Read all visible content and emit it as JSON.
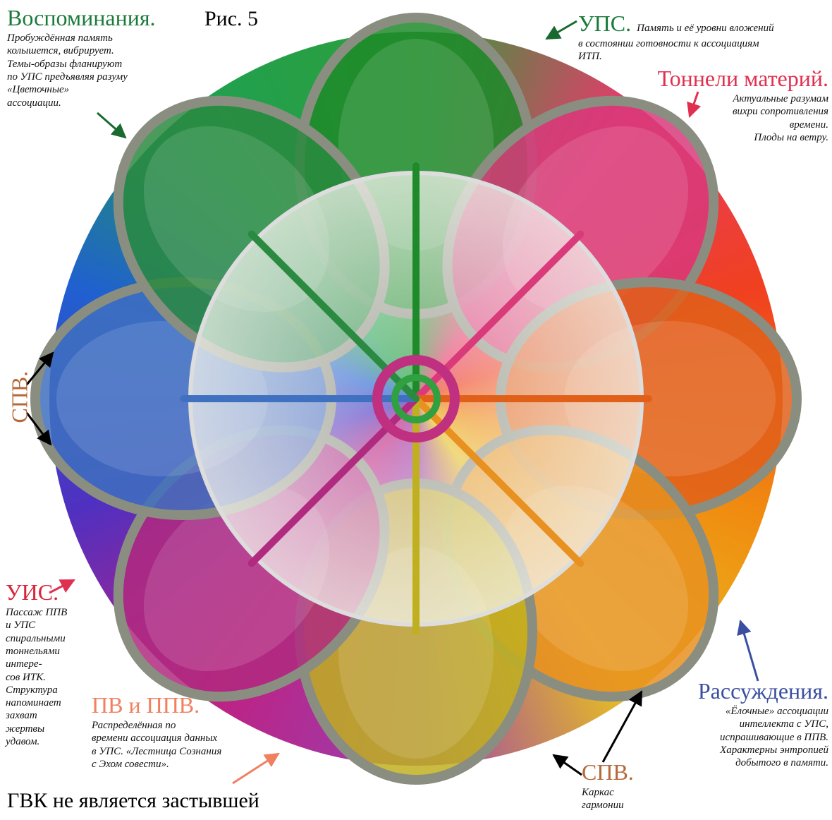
{
  "figure_label": "Рис. 5",
  "annotations": [
    {
      "title": "Воспоминания.",
      "lines": [
        "Пробуждённая память",
        "колышется, вибрирует.",
        "Темы-образы фланируют",
        "по УПС предъявляя разуму",
        "«Цветочные»",
        "ассоциации."
      ]
    },
    {
      "title": "УПС.",
      "lines": [
        "Память и её уровни вложений",
        "в состоянии готовности к ассоциациям",
        "ИТП."
      ]
    },
    {
      "title": "Тоннели материй.",
      "lines": [
        "Актуальные разумам",
        "вихри сопротивления",
        "времени.",
        "Плоды на ветру."
      ]
    },
    {
      "title": "СПВ.",
      "lines": []
    },
    {
      "title": "УИС.",
      "lines": [
        "Пассаж ППВ",
        "и УПС",
        "спиральными",
        "тоннельями",
        "интере-",
        "сов ИТК.",
        "Структура",
        "напоминает",
        "захват",
        "жертвы",
        "удавом."
      ]
    },
    {
      "title": "ПВ и ППВ.",
      "lines": [
        "Распределённая по",
        "времени ассоциация данных",
        "в УПС. «Лестница Сознания",
        "с Эхом совести»."
      ]
    },
    {
      "title": "Рассуждения.",
      "lines": [
        "«Ёлочные» ассоциации",
        "интеллекта с УПС,",
        "испрашивающие в ППВ.",
        "Характерны энтропией",
        "добытого в памяти."
      ]
    },
    {
      "title": "СПВ.",
      "lines": [
        "Каркас",
        "гармонии"
      ]
    }
  ],
  "footer": "ГВК не является застывшей"
}
